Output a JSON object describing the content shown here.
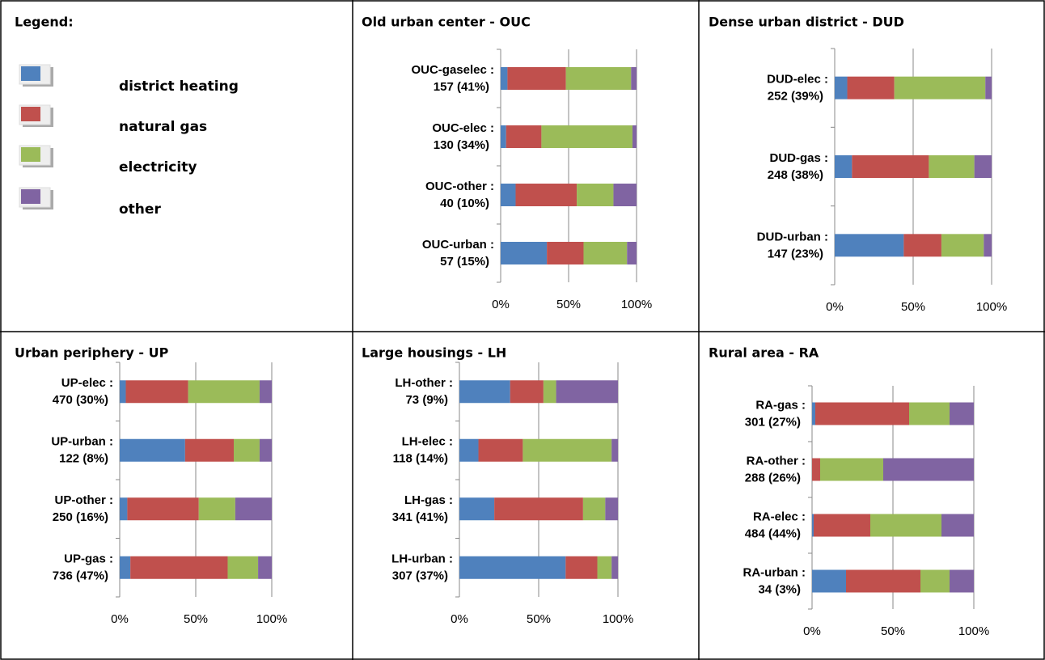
{
  "legend": {
    "title": "Legend:",
    "items": [
      {
        "name": "district heating",
        "color": "#4f81bd"
      },
      {
        "name": "natural gas",
        "color": "#c0504d"
      },
      {
        "name": "electricity",
        "color": "#9bbb59"
      },
      {
        "name": "other",
        "color": "#8064a2"
      }
    ]
  },
  "chart_data": [
    {
      "type": "bar",
      "orientation": "horizontal",
      "stacked": true,
      "title": "Old urban center - OUC",
      "categories": [
        "OUC-gaselec :",
        "OUC-elec :",
        "OUC-other :",
        "OUC-urban :"
      ],
      "category_notes": [
        "157 (41%)",
        "130 (34%)",
        "40 (10%)",
        "57 (15%)"
      ],
      "series": [
        {
          "color": "#4f81bd",
          "values": [
            5,
            4,
            11,
            34
          ]
        },
        {
          "color": "#c0504d",
          "values": [
            43,
            26,
            45,
            27
          ]
        },
        {
          "color": "#9bbb59",
          "values": [
            48,
            67,
            27,
            32
          ]
        },
        {
          "color": "#8064a2",
          "values": [
            4,
            3,
            17,
            7
          ]
        }
      ],
      "xlim": [
        0,
        100
      ],
      "xticks": [
        {
          "value": 0,
          "label": "0%"
        },
        {
          "value": 50,
          "label": "50%"
        },
        {
          "value": 100,
          "label": "100%"
        }
      ],
      "grid": true
    },
    {
      "type": "bar",
      "orientation": "horizontal",
      "stacked": true,
      "title": "Dense urban district - DUD",
      "categories": [
        "DUD-elec :",
        "DUD-gas :",
        "DUD-urban :"
      ],
      "category_notes": [
        "252 (39%)",
        "248 (38%)",
        "147 (23%)"
      ],
      "series": [
        {
          "color": "#4f81bd",
          "values": [
            8,
            11,
            44
          ]
        },
        {
          "color": "#c0504d",
          "values": [
            30,
            49,
            24
          ]
        },
        {
          "color": "#9bbb59",
          "values": [
            58,
            29,
            27
          ]
        },
        {
          "color": "#8064a2",
          "values": [
            4,
            11,
            5
          ]
        }
      ],
      "xlim": [
        0,
        100
      ],
      "xticks": [
        {
          "value": 0,
          "label": "0%"
        },
        {
          "value": 50,
          "label": "50%"
        },
        {
          "value": 100,
          "label": "100%"
        }
      ],
      "grid": true
    },
    {
      "type": "bar",
      "orientation": "horizontal",
      "stacked": true,
      "title": "Urban periphery - UP",
      "categories": [
        "UP-elec :",
        "UP-urban :",
        "UP-other :",
        "UP-gas :"
      ],
      "category_notes": [
        "470 (30%)",
        "122 (8%)",
        "250 (16%)",
        "736 (47%)"
      ],
      "series": [
        {
          "color": "#4f81bd",
          "values": [
            4,
            43,
            5,
            7
          ]
        },
        {
          "color": "#c0504d",
          "values": [
            41,
            32,
            47,
            64
          ]
        },
        {
          "color": "#9bbb59",
          "values": [
            47,
            17,
            24,
            20
          ]
        },
        {
          "color": "#8064a2",
          "values": [
            8,
            8,
            24,
            9
          ]
        }
      ],
      "xlim": [
        0,
        100
      ],
      "xticks": [
        {
          "value": 0,
          "label": "0%"
        },
        {
          "value": 50,
          "label": "50%"
        },
        {
          "value": 100,
          "label": "100%"
        }
      ],
      "grid": true
    },
    {
      "type": "bar",
      "orientation": "horizontal",
      "stacked": true,
      "title": "Large housings - LH",
      "categories": [
        "LH-other :",
        "LH-elec :",
        "LH-gas :",
        "LH-urban :"
      ],
      "category_notes": [
        "73 (9%)",
        "118 (14%)",
        "341 (41%)",
        "307 (37%)"
      ],
      "series": [
        {
          "color": "#4f81bd",
          "values": [
            32,
            12,
            22,
            67
          ]
        },
        {
          "color": "#c0504d",
          "values": [
            21,
            28,
            56,
            20
          ]
        },
        {
          "color": "#9bbb59",
          "values": [
            8,
            56,
            14,
            9
          ]
        },
        {
          "color": "#8064a2",
          "values": [
            39,
            4,
            8,
            4
          ]
        }
      ],
      "xlim": [
        0,
        100
      ],
      "xticks": [
        {
          "value": 0,
          "label": "0%"
        },
        {
          "value": 50,
          "label": "50%"
        },
        {
          "value": 100,
          "label": "100%"
        }
      ],
      "grid": true
    },
    {
      "type": "bar",
      "orientation": "horizontal",
      "stacked": true,
      "title": "Rural area - RA",
      "categories": [
        "RA-gas :",
        "RA-other :",
        "RA-elec :",
        "RA-urban :"
      ],
      "category_notes": [
        "301 (27%)",
        "288 (26%)",
        "484 (44%)",
        "34 (3%)"
      ],
      "series": [
        {
          "color": "#4f81bd",
          "values": [
            2,
            0,
            1,
            21
          ]
        },
        {
          "color": "#c0504d",
          "values": [
            58,
            5,
            35,
            46
          ]
        },
        {
          "color": "#9bbb59",
          "values": [
            25,
            39,
            44,
            18
          ]
        },
        {
          "color": "#8064a2",
          "values": [
            15,
            56,
            20,
            15
          ]
        }
      ],
      "xlim": [
        0,
        100
      ],
      "xticks": [
        {
          "value": 0,
          "label": "0%"
        },
        {
          "value": 50,
          "label": "50%"
        },
        {
          "value": 100,
          "label": "100%"
        }
      ],
      "grid": true
    }
  ]
}
